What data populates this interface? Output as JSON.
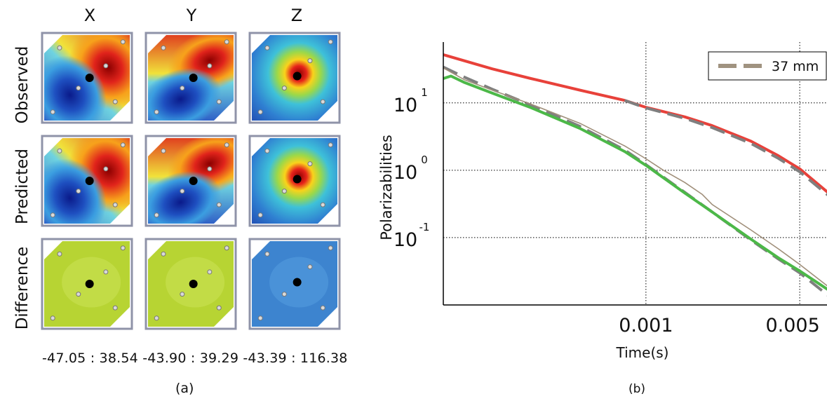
{
  "panel_a": {
    "columns": [
      "X",
      "Y",
      "Z"
    ],
    "rows": [
      "Observed",
      "Predicted",
      "Difference"
    ],
    "ranges": [
      "-47.05 : 38.54",
      "-43.90 : 39.29",
      "-43.39 : 116.38"
    ],
    "caption": "(a)"
  },
  "panel_b": {
    "caption": "(b)"
  },
  "colors": {
    "red_curve": "#e8413a",
    "green_curve": "#4cb848",
    "brown_curve": "#a08f7a",
    "dashed_curve": "#7f7f7f",
    "legend_dash": "#a09380"
  },
  "chart_data": {
    "type": "line",
    "xlabel": "Time(s)",
    "ylabel": "Polarizabilities",
    "xscale": "log",
    "yscale": "log",
    "xlim": [
      0.00012,
      0.0067
    ],
    "ylim": [
      0.01,
      80
    ],
    "x_ticks": [
      0.001,
      0.005
    ],
    "x_tick_labels": [
      "0.001",
      "0.005"
    ],
    "y_ticks": [
      0.1,
      1,
      10
    ],
    "y_tick_labels": [
      [
        "10",
        "-1"
      ],
      [
        "10",
        "0"
      ],
      [
        "10",
        "1"
      ]
    ],
    "grid": "dotted",
    "legend": {
      "placement": "top-right",
      "entries": [
        "37 mm"
      ]
    },
    "series": [
      {
        "id": "red",
        "style": "solid",
        "x": [
          0.00012,
          0.0002,
          0.0003,
          0.0005,
          0.0008,
          0.001,
          0.0015,
          0.002,
          0.003,
          0.004,
          0.005,
          0.0067
        ],
        "y": [
          52,
          32,
          23,
          15.5,
          10.9,
          8.6,
          6.2,
          4.6,
          2.7,
          1.64,
          1.05,
          0.47
        ]
      },
      {
        "id": "red-dashed",
        "style": "dashed",
        "x": [
          0.0008,
          0.001,
          0.0015,
          0.002,
          0.003,
          0.004,
          0.005,
          0.0067
        ],
        "y": [
          10.9,
          8.4,
          5.9,
          4.3,
          2.5,
          1.5,
          0.95,
          0.43
        ]
      },
      {
        "id": "gray-dashed",
        "style": "dashed",
        "x": [
          0.00012,
          0.00015,
          0.0002,
          0.0003,
          0.0005,
          0.0008,
          0.001,
          0.0015,
          0.002,
          0.003,
          0.004,
          0.005,
          0.0067
        ],
        "y": [
          34,
          24,
          16,
          9.3,
          4.5,
          2.0,
          1.21,
          0.47,
          0.24,
          0.092,
          0.048,
          0.03,
          0.014
        ]
      },
      {
        "id": "green",
        "style": "solid",
        "x": [
          0.00012,
          0.00013,
          0.00015,
          0.0002,
          0.0003,
          0.0005,
          0.0008,
          0.001,
          0.0015,
          0.002,
          0.003,
          0.004,
          0.005,
          0.0067
        ],
        "y": [
          23,
          25,
          20,
          14,
          8.5,
          4.2,
          1.9,
          1.18,
          0.46,
          0.24,
          0.095,
          0.05,
          0.032,
          0.017
        ]
      },
      {
        "id": "brown",
        "style": "thin",
        "x": [
          0.00012,
          0.00015,
          0.0002,
          0.0003,
          0.0005,
          0.0008,
          0.001,
          0.0012,
          0.0015,
          0.0018,
          0.002,
          0.003,
          0.004,
          0.005,
          0.0067
        ],
        "y": [
          33,
          22,
          15.5,
          9.6,
          5.0,
          2.3,
          1.48,
          1.0,
          0.66,
          0.44,
          0.31,
          0.13,
          0.068,
          0.04,
          0.019
        ]
      }
    ]
  }
}
